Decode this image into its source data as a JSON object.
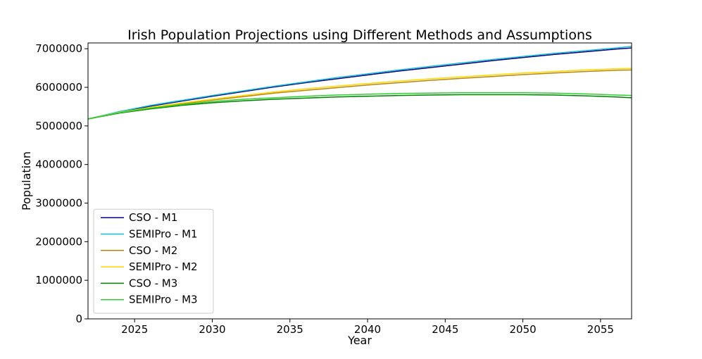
{
  "chart_data": {
    "type": "line",
    "title": "Irish Population Projections using Different Methods and Assumptions",
    "xlabel": "Year",
    "ylabel": "Population",
    "xlim": [
      2022,
      2057
    ],
    "ylim": [
      0,
      7150000
    ],
    "xticks": [
      2025,
      2030,
      2035,
      2040,
      2045,
      2050,
      2055
    ],
    "yticks": [
      0,
      1000000,
      2000000,
      3000000,
      4000000,
      5000000,
      6000000,
      7000000
    ],
    "legend_position": "lower-left",
    "series": [
      {
        "name": "CSO - M1",
        "color": "#000080",
        "x": [
          2022,
          2024,
          2026,
          2028,
          2030,
          2032,
          2034,
          2036,
          2038,
          2040,
          2042,
          2044,
          2046,
          2048,
          2050,
          2052,
          2054,
          2056,
          2057
        ],
        "values": [
          5180000,
          5360000,
          5510000,
          5640000,
          5770000,
          5890000,
          6010000,
          6120000,
          6220000,
          6320000,
          6420000,
          6510000,
          6600000,
          6690000,
          6770000,
          6850000,
          6920000,
          6990000,
          7020000
        ]
      },
      {
        "name": "SEMIPro - M1",
        "color": "#17becf",
        "x": [
          2022,
          2024,
          2026,
          2028,
          2030,
          2032,
          2034,
          2036,
          2038,
          2040,
          2042,
          2044,
          2046,
          2048,
          2050,
          2052,
          2054,
          2056,
          2057
        ],
        "values": [
          5180000,
          5370000,
          5530000,
          5660000,
          5790000,
          5910000,
          6030000,
          6140000,
          6250000,
          6350000,
          6450000,
          6540000,
          6630000,
          6720000,
          6800000,
          6880000,
          6950000,
          7020000,
          7060000
        ]
      },
      {
        "name": "CSO - M2",
        "color": "#b8860b",
        "x": [
          2022,
          2024,
          2026,
          2028,
          2030,
          2032,
          2034,
          2036,
          2038,
          2040,
          2042,
          2044,
          2046,
          2048,
          2050,
          2052,
          2054,
          2056,
          2057
        ],
        "values": [
          5180000,
          5340000,
          5460000,
          5570000,
          5670000,
          5760000,
          5850000,
          5920000,
          5990000,
          6060000,
          6120000,
          6180000,
          6230000,
          6280000,
          6330000,
          6370000,
          6410000,
          6440000,
          6450000
        ]
      },
      {
        "name": "SEMIPro - M2",
        "color": "#ffd700",
        "x": [
          2022,
          2024,
          2026,
          2028,
          2030,
          2032,
          2034,
          2036,
          2038,
          2040,
          2042,
          2044,
          2046,
          2048,
          2050,
          2052,
          2054,
          2056,
          2057
        ],
        "values": [
          5180000,
          5350000,
          5480000,
          5590000,
          5690000,
          5790000,
          5880000,
          5960000,
          6030000,
          6100000,
          6160000,
          6220000,
          6270000,
          6320000,
          6370000,
          6410000,
          6450000,
          6480000,
          6490000
        ]
      },
      {
        "name": "CSO - M3",
        "color": "#008000",
        "x": [
          2022,
          2024,
          2026,
          2028,
          2030,
          2032,
          2034,
          2036,
          2038,
          2040,
          2042,
          2044,
          2046,
          2048,
          2050,
          2052,
          2054,
          2056,
          2057
        ],
        "values": [
          5180000,
          5330000,
          5440000,
          5530000,
          5600000,
          5650000,
          5690000,
          5720000,
          5750000,
          5770000,
          5790000,
          5800000,
          5810000,
          5810000,
          5810000,
          5800000,
          5780000,
          5750000,
          5730000
        ]
      },
      {
        "name": "SEMIPro - M3",
        "color": "#32cd32",
        "x": [
          2022,
          2024,
          2026,
          2028,
          2030,
          2032,
          2034,
          2036,
          2038,
          2040,
          2042,
          2044,
          2046,
          2048,
          2050,
          2052,
          2054,
          2056,
          2057
        ],
        "values": [
          5180000,
          5340000,
          5460000,
          5550000,
          5630000,
          5690000,
          5730000,
          5770000,
          5800000,
          5820000,
          5840000,
          5850000,
          5860000,
          5860000,
          5860000,
          5850000,
          5830000,
          5800000,
          5790000
        ]
      }
    ]
  }
}
